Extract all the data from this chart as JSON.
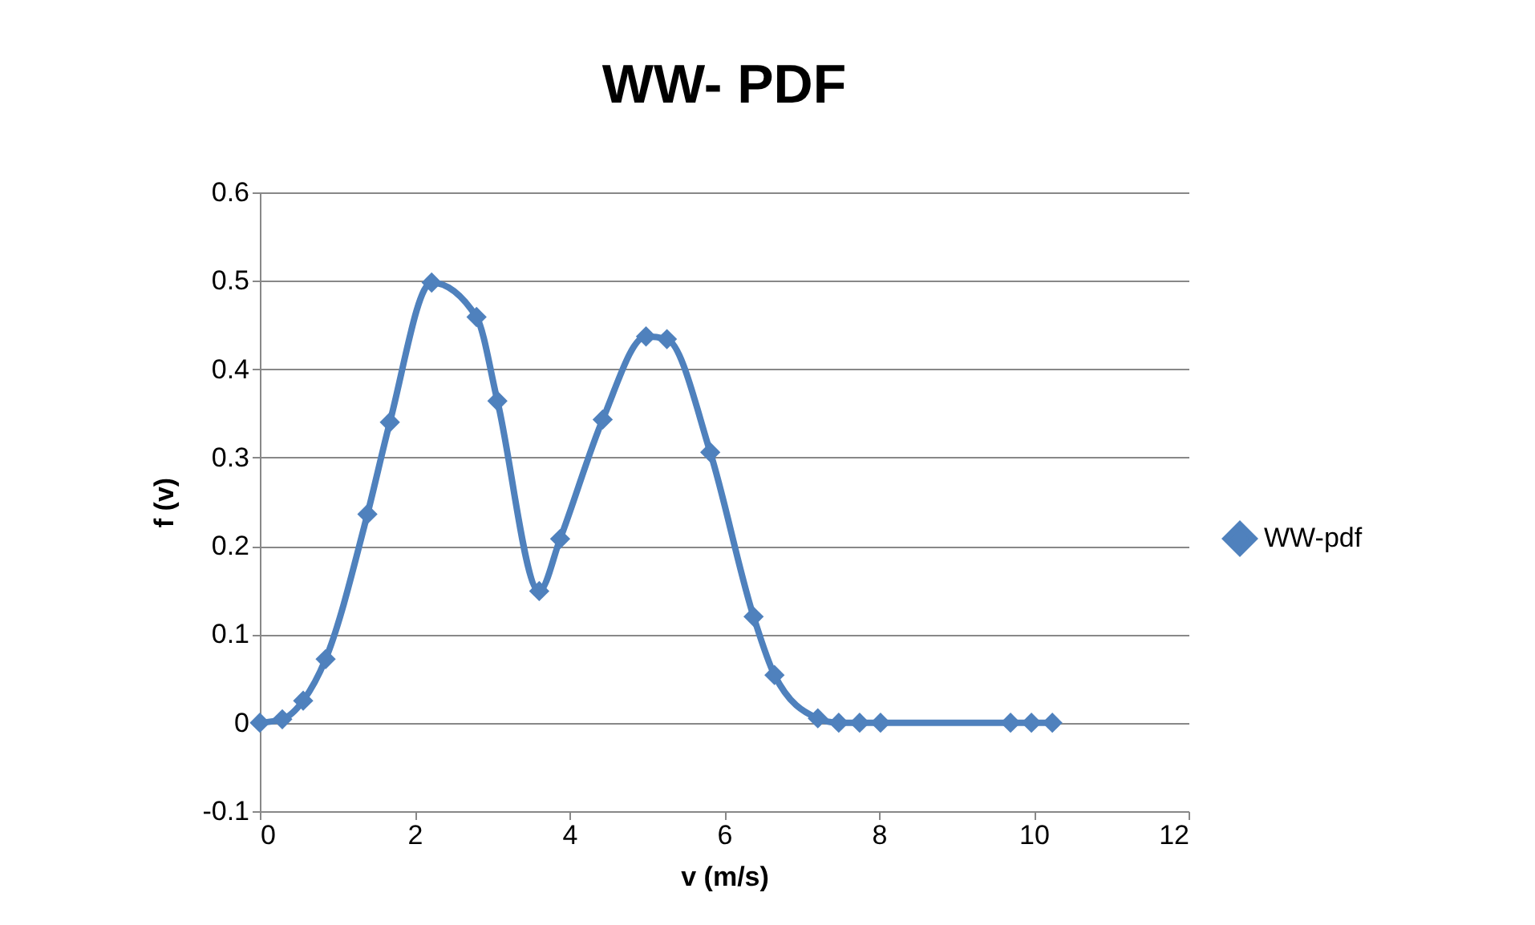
{
  "chart_data": {
    "type": "line",
    "title": "WW- PDF",
    "xlabel": "v  (m/s)",
    "ylabel": "f (v)",
    "series": [
      {
        "name": "WW-pdf",
        "color": "#4f81bd",
        "x": [
          0,
          0.29,
          0.56,
          0.85,
          1.39,
          1.68,
          2.22,
          2.8,
          3.07,
          3.61,
          3.88,
          4.43,
          4.99,
          5.26,
          5.82,
          6.38,
          6.65,
          7.21,
          7.48,
          7.75,
          8.02,
          9.7,
          9.97,
          10.24
        ],
        "values": [
          0,
          0.004,
          0.025,
          0.072,
          0.236,
          0.34,
          0.498,
          0.459,
          0.364,
          0.149,
          0.208,
          0.343,
          0.437,
          0.434,
          0.306,
          0.12,
          0.054,
          0.005,
          0,
          0,
          0,
          0,
          0,
          0
        ]
      }
    ],
    "xlim": [
      0,
      12
    ],
    "xticks": [
      0,
      2,
      4,
      6,
      8,
      10,
      12
    ],
    "ylim": [
      -0.1,
      0.6
    ],
    "yticks": [
      -0.1,
      0,
      0.1,
      0.2,
      0.3,
      0.4,
      0.5,
      0.6
    ],
    "grid": "y",
    "legend": "right",
    "marker": "diamond",
    "line_style": "solid"
  }
}
